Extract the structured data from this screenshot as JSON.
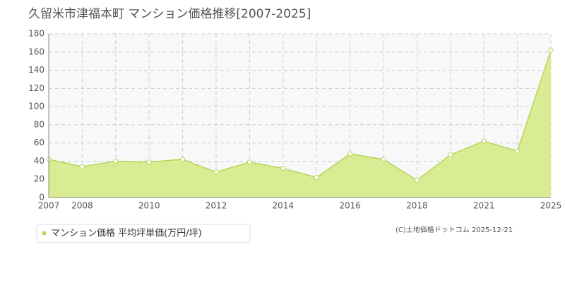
{
  "chart_data": {
    "type": "area",
    "title": "久留米市津福本町 マンション価格推移[2007-2025]",
    "categories": [
      "2007",
      "2008",
      null,
      "2010",
      null,
      "2012",
      null,
      "2014",
      null,
      "2016",
      null,
      "2018",
      null,
      "2021",
      null,
      "2025"
    ],
    "series": [
      {
        "name": "マンション価格 平均坪単価(万円/坪)",
        "color": "#b5d65a",
        "values": [
          42,
          34,
          40,
          39,
          42,
          28,
          39,
          32,
          22,
          48,
          42,
          19,
          47,
          62,
          51,
          162
        ]
      }
    ],
    "ylim": [
      0,
      180
    ],
    "yticks": [
      0,
      20,
      40,
      60,
      80,
      100,
      120,
      140,
      160,
      180
    ],
    "grid": true,
    "credit": "(C)土地価格ドットコム 2025-12-21"
  }
}
